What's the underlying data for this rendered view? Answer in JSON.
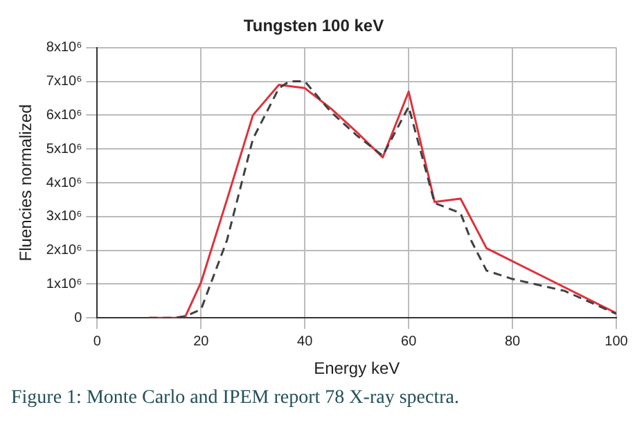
{
  "chart_data": {
    "type": "line",
    "title": "Tungsten 100 keV",
    "xlabel": "Energy keV",
    "ylabel": "Fluencies normalized",
    "annotations": [
      "Figure 1: Monte Carlo and IPEM report 78 X-ray spectra."
    ],
    "xlim": [
      0,
      100
    ],
    "xticks": [
      0,
      20,
      40,
      60,
      80,
      100
    ],
    "ylim": [
      0,
      8000000
    ],
    "yticks": [
      {
        "value": 0,
        "label": "0"
      },
      {
        "value": 1000000,
        "label": "1x10⁶"
      },
      {
        "value": 2000000,
        "label": "2x10⁶"
      },
      {
        "value": 3000000,
        "label": "3x10⁶"
      },
      {
        "value": 4000000,
        "label": "4x10⁶"
      },
      {
        "value": 5000000,
        "label": "5x10⁶"
      },
      {
        "value": 6000000,
        "label": "6x10⁶"
      },
      {
        "value": 7000000,
        "label": "7x10⁶"
      },
      {
        "value": 8000000,
        "label": "8x10⁶"
      }
    ],
    "grid": true,
    "marker": "none",
    "series": [
      {
        "color": "#404040",
        "line_style": "dashed",
        "x": [
          10,
          15,
          17,
          20,
          25,
          30,
          35,
          37,
          40,
          45,
          50,
          55,
          60,
          65,
          70,
          72,
          75,
          80,
          90,
          100
        ],
        "values": [
          0,
          0,
          50000,
          250000,
          2300000,
          5300000,
          6800000,
          7000000,
          7000000,
          6100000,
          5400000,
          4800000,
          6250000,
          3400000,
          3100000,
          2300000,
          1400000,
          1150000,
          800000,
          120000
        ]
      },
      {
        "color": "#e0303a",
        "line_style": "solid",
        "x": [
          10,
          15,
          17,
          20,
          25,
          30,
          35,
          40,
          45,
          50,
          55,
          60,
          65,
          70,
          75,
          100
        ],
        "values": [
          0,
          0,
          50000,
          1050000,
          3500000,
          6000000,
          6900000,
          6800000,
          6200000,
          5500000,
          4750000,
          6700000,
          3430000,
          3530000,
          2060000,
          140000
        ]
      }
    ]
  }
}
